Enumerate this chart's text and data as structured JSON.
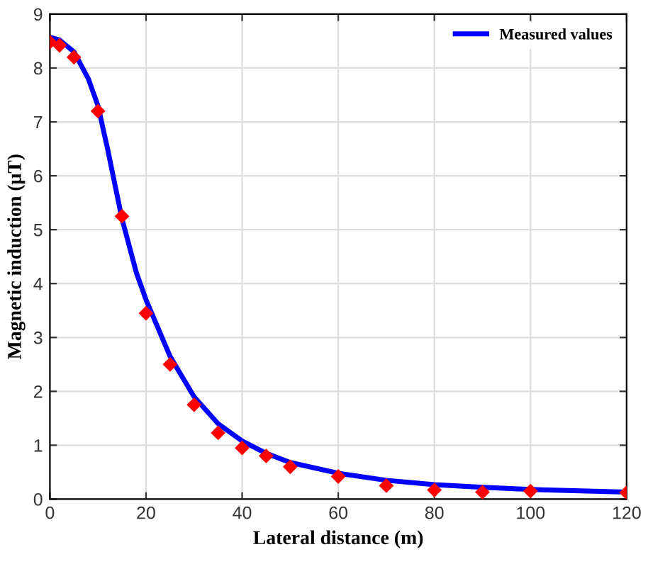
{
  "chart_data": {
    "type": "scatter",
    "xlabel": "Lateral distance (m)",
    "ylabel": "Magnetic induction (μT)",
    "xlim": [
      0,
      120
    ],
    "xticks": [
      0,
      20,
      40,
      60,
      80,
      100,
      120
    ],
    "ylim": [
      0,
      9
    ],
    "yticks": [
      0,
      1,
      2,
      3,
      4,
      5,
      6,
      7,
      8,
      9
    ],
    "grid": true,
    "legend": "top right",
    "series": [
      {
        "marker": "diamond",
        "color": "#ff0000",
        "x": [
          0,
          2,
          5,
          10,
          15,
          20,
          25,
          30,
          35,
          40,
          45,
          50,
          60,
          70,
          80,
          90,
          100,
          120
        ],
        "values": [
          8.48,
          8.42,
          8.2,
          7.2,
          5.25,
          3.45,
          2.5,
          1.75,
          1.23,
          0.95,
          0.8,
          0.6,
          0.42,
          0.25,
          0.17,
          0.13,
          0.15,
          0.12
        ]
      },
      {
        "type": "line",
        "name": "Measured values",
        "color": "#0000ff",
        "line_style": "solid",
        "x": [
          0,
          2,
          5,
          8,
          10,
          12,
          15,
          18,
          20,
          25,
          30,
          35,
          40,
          45,
          50,
          60,
          70,
          80,
          90,
          100,
          120
        ],
        "values": [
          8.57,
          8.52,
          8.3,
          7.8,
          7.3,
          6.5,
          5.2,
          4.2,
          3.7,
          2.65,
          1.9,
          1.4,
          1.08,
          0.85,
          0.68,
          0.48,
          0.35,
          0.27,
          0.22,
          0.18,
          0.13
        ]
      }
    ]
  }
}
